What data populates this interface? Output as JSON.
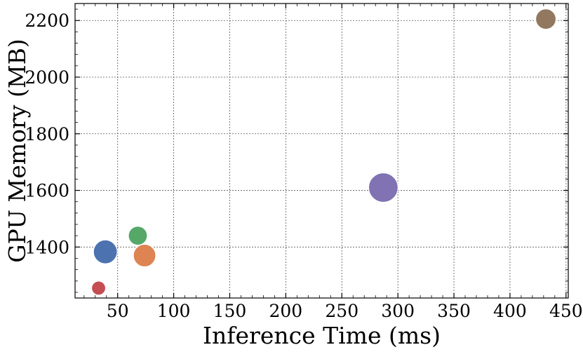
{
  "chart_data": {
    "type": "scatter",
    "title": "",
    "xlabel": "Inference Time (ms)",
    "ylabel": "GPU Memory (MB)",
    "xlim": [
      12,
      452
    ],
    "ylim": [
      1220,
      2260
    ],
    "xticks": [
      50,
      100,
      150,
      200,
      250,
      300,
      350,
      400,
      450
    ],
    "yticks": [
      1400,
      1600,
      1800,
      2000,
      2200
    ],
    "grid": true,
    "legend": "none",
    "points": [
      {
        "x": 33,
        "y": 1255,
        "size": 1.0,
        "color": "#c44e52"
      },
      {
        "x": 39,
        "y": 1383,
        "size": 1.7,
        "color": "#4c72b0"
      },
      {
        "x": 68,
        "y": 1440,
        "size": 1.35,
        "color": "#55a868"
      },
      {
        "x": 74,
        "y": 1370,
        "size": 1.6,
        "color": "#dd8452"
      },
      {
        "x": 287,
        "y": 1610,
        "size": 2.1,
        "color": "#8172b3"
      },
      {
        "x": 432,
        "y": 2205,
        "size": 1.45,
        "color": "#937860"
      }
    ]
  }
}
